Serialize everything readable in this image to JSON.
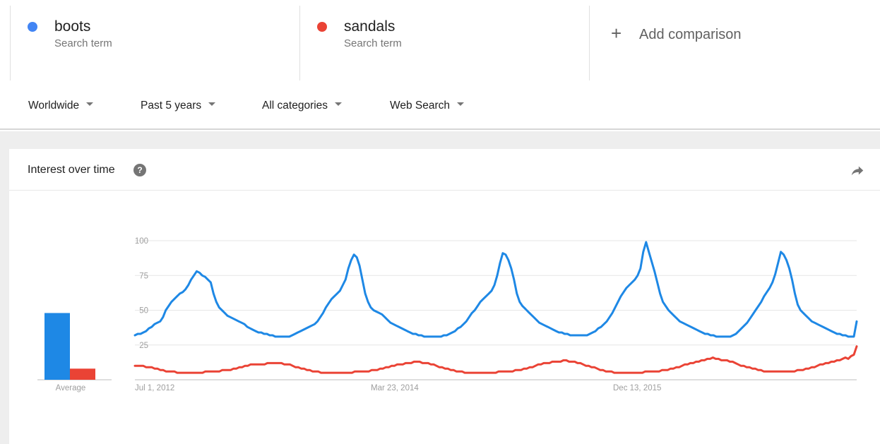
{
  "terms": [
    {
      "name": "boots",
      "sub": "Search term",
      "color": "#4285f4"
    },
    {
      "name": "sandals",
      "sub": "Search term",
      "color": "#ea4335"
    }
  ],
  "add_comparison": {
    "icon": "plus-icon",
    "label": "Add comparison"
  },
  "filters": {
    "region": "Worldwide",
    "time": "Past 5 years",
    "category": "All categories",
    "search_type": "Web Search"
  },
  "card": {
    "title": "Interest over time",
    "help_icon": "question-icon",
    "share_icon": "share-arrow-icon"
  },
  "chart_data": {
    "type": "line",
    "title": "Interest over time",
    "ylim": [
      0,
      100
    ],
    "yticks": [
      25,
      50,
      75,
      100
    ],
    "grid": true,
    "x_tick_labels": [
      "Jul 1, 2012",
      "Mar 23, 2014",
      "Dec 13, 2015"
    ],
    "average": {
      "label": "Average",
      "values": {
        "boots": 48,
        "sandals": 8
      }
    },
    "series": [
      {
        "name": "boots",
        "color": "#1e88e5",
        "values": [
          32,
          33,
          33,
          34,
          35,
          37,
          38,
          40,
          41,
          42,
          45,
          50,
          53,
          56,
          58,
          60,
          62,
          63,
          65,
          68,
          72,
          75,
          78,
          77,
          75,
          74,
          72,
          70,
          62,
          56,
          52,
          50,
          48,
          46,
          45,
          44,
          43,
          42,
          41,
          40,
          38,
          37,
          36,
          35,
          34,
          34,
          33,
          33,
          32,
          32,
          31,
          31,
          31,
          31,
          31,
          31,
          32,
          33,
          34,
          35,
          36,
          37,
          38,
          39,
          40,
          42,
          45,
          48,
          52,
          55,
          58,
          60,
          62,
          64,
          68,
          72,
          80,
          86,
          90,
          88,
          82,
          72,
          62,
          56,
          52,
          50,
          49,
          48,
          47,
          45,
          43,
          41,
          40,
          39,
          38,
          37,
          36,
          35,
          34,
          33,
          33,
          32,
          32,
          31,
          31,
          31,
          31,
          31,
          31,
          31,
          32,
          32,
          33,
          34,
          35,
          37,
          38,
          40,
          42,
          45,
          48,
          50,
          53,
          56,
          58,
          60,
          62,
          64,
          68,
          75,
          84,
          91,
          90,
          86,
          80,
          72,
          62,
          56,
          53,
          51,
          49,
          47,
          45,
          43,
          41,
          40,
          39,
          38,
          37,
          36,
          35,
          34,
          34,
          33,
          33,
          32,
          32,
          32,
          32,
          32,
          32,
          32,
          33,
          34,
          35,
          37,
          38,
          40,
          42,
          45,
          48,
          52,
          56,
          60,
          63,
          66,
          68,
          70,
          72,
          75,
          80,
          92,
          99,
          92,
          85,
          78,
          70,
          62,
          56,
          53,
          50,
          48,
          46,
          44,
          42,
          41,
          40,
          39,
          38,
          37,
          36,
          35,
          34,
          33,
          33,
          32,
          32,
          31,
          31,
          31,
          31,
          31,
          31,
          32,
          33,
          35,
          37,
          39,
          41,
          44,
          47,
          50,
          53,
          56,
          60,
          63,
          66,
          70,
          76,
          84,
          92,
          90,
          86,
          80,
          72,
          62,
          54,
          50,
          48,
          46,
          44,
          42,
          41,
          40,
          39,
          38,
          37,
          36,
          35,
          34,
          33,
          33,
          32,
          32,
          31,
          31,
          31,
          42
        ]
      },
      {
        "name": "sandals",
        "color": "#ea4335",
        "values": [
          10,
          10,
          10,
          10,
          9,
          9,
          9,
          8,
          8,
          7,
          7,
          6,
          6,
          6,
          6,
          5,
          5,
          5,
          5,
          5,
          5,
          5,
          5,
          5,
          5,
          6,
          6,
          6,
          6,
          6,
          6,
          7,
          7,
          7,
          7,
          8,
          8,
          9,
          9,
          10,
          10,
          11,
          11,
          11,
          11,
          11,
          11,
          12,
          12,
          12,
          12,
          12,
          12,
          11,
          11,
          11,
          10,
          9,
          9,
          8,
          8,
          7,
          7,
          6,
          6,
          6,
          5,
          5,
          5,
          5,
          5,
          5,
          5,
          5,
          5,
          5,
          5,
          5,
          6,
          6,
          6,
          6,
          6,
          6,
          7,
          7,
          7,
          8,
          8,
          9,
          9,
          10,
          10,
          11,
          11,
          11,
          12,
          12,
          12,
          13,
          13,
          13,
          12,
          12,
          12,
          11,
          11,
          10,
          9,
          9,
          8,
          8,
          7,
          7,
          6,
          6,
          6,
          5,
          5,
          5,
          5,
          5,
          5,
          5,
          5,
          5,
          5,
          5,
          5,
          6,
          6,
          6,
          6,
          6,
          6,
          7,
          7,
          7,
          8,
          8,
          9,
          9,
          10,
          11,
          11,
          12,
          12,
          12,
          13,
          13,
          13,
          13,
          14,
          14,
          13,
          13,
          13,
          12,
          12,
          11,
          10,
          10,
          9,
          9,
          8,
          7,
          7,
          6,
          6,
          6,
          5,
          5,
          5,
          5,
          5,
          5,
          5,
          5,
          5,
          5,
          5,
          6,
          6,
          6,
          6,
          6,
          6,
          7,
          7,
          7,
          8,
          8,
          9,
          9,
          10,
          11,
          11,
          12,
          12,
          13,
          13,
          14,
          14,
          15,
          15,
          16,
          15,
          15,
          14,
          14,
          14,
          13,
          13,
          12,
          11,
          10,
          10,
          9,
          9,
          8,
          8,
          7,
          7,
          6,
          6,
          6,
          6,
          6,
          6,
          6,
          6,
          6,
          6,
          6,
          6,
          7,
          7,
          7,
          8,
          8,
          9,
          9,
          10,
          11,
          11,
          12,
          12,
          13,
          13,
          14,
          14,
          15,
          16,
          15,
          17,
          18,
          24
        ]
      }
    ]
  }
}
